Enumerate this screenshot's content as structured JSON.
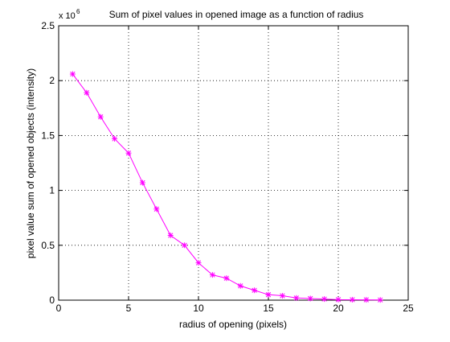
{
  "chart_data": {
    "type": "line",
    "title": "Sum of pixel values in opened image as a function of radius",
    "xlabel": "radius of opening (pixels)",
    "ylabel": "pixel value sum of opened objects (intensity)",
    "y_multiplier_base": "x 10",
    "y_multiplier_exponent": "6",
    "xlim": [
      0,
      25
    ],
    "ylim": [
      0,
      2.5
    ],
    "x_ticks": [
      0,
      5,
      10,
      15,
      20,
      25
    ],
    "x_tick_labels": [
      "0",
      "5",
      "10",
      "15",
      "20",
      "25"
    ],
    "y_ticks": [
      0,
      0.5,
      1,
      1.5,
      2,
      2.5
    ],
    "y_tick_labels": [
      "0",
      "0.5",
      "1",
      "1.5",
      "2",
      "2.5"
    ],
    "grid": true,
    "grid_style": "dotted",
    "marker": "asterisk",
    "line_color": "#ff00ff",
    "series": [
      {
        "x": [
          1,
          2,
          3,
          4,
          5,
          6,
          7,
          8,
          9,
          10,
          11,
          12,
          13,
          14,
          15,
          16,
          17,
          18,
          19,
          20,
          21,
          22,
          23
        ],
        "values": [
          2.06,
          1.89,
          1.67,
          1.47,
          1.34,
          1.07,
          0.83,
          0.59,
          0.5,
          0.34,
          0.23,
          0.2,
          0.13,
          0.09,
          0.05,
          0.04,
          0.02,
          0.015,
          0.01,
          0.005,
          0.004,
          0.003,
          0.002
        ]
      }
    ]
  }
}
